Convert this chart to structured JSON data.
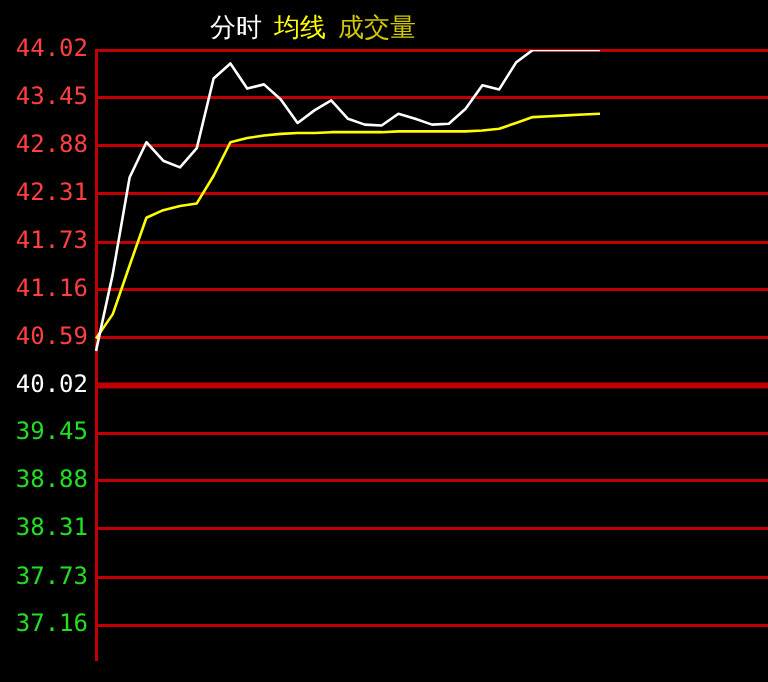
{
  "chart_data": {
    "type": "line",
    "categories": [
      null,
      null,
      null,
      null,
      null,
      null,
      null,
      null,
      null,
      null,
      null,
      null,
      null,
      null,
      null,
      null,
      null,
      null,
      null,
      null,
      null,
      null,
      null,
      null,
      null,
      null,
      null,
      null,
      null,
      null,
      null,
      null,
      null,
      null,
      null,
      null,
      null,
      null,
      null,
      null,
      null
    ],
    "series": [
      {
        "name": "分时",
        "color": "#ffffff",
        "values": [
          40.43,
          41.35,
          42.5,
          42.92,
          42.7,
          42.62,
          42.85,
          43.68,
          43.86,
          43.56,
          43.61,
          43.43,
          43.15,
          43.3,
          43.42,
          43.2,
          43.13,
          43.12,
          43.26,
          43.2,
          43.13,
          43.14,
          43.32,
          43.6,
          43.55,
          43.87,
          44.02,
          44.02,
          44.02,
          44.02,
          44.02,
          null,
          null,
          null,
          null,
          null,
          null,
          null,
          null,
          null,
          null
        ]
      },
      {
        "name": "均线",
        "color": "#ffff00",
        "values": [
          40.58,
          40.87,
          41.45,
          42.02,
          42.11,
          42.16,
          42.19,
          42.52,
          42.92,
          42.97,
          43.0,
          43.02,
          43.03,
          43.03,
          43.04,
          43.04,
          43.04,
          43.04,
          43.05,
          43.05,
          43.05,
          43.05,
          43.05,
          43.06,
          43.08,
          43.15,
          43.22,
          43.23,
          43.24,
          43.25,
          43.26,
          null,
          null,
          null,
          null,
          null,
          null,
          null,
          null,
          null,
          null
        ]
      }
    ],
    "annotations": [
      "成交量"
    ],
    "ylim": [
      36.75,
      44.02
    ],
    "yticks": [
      37.16,
      37.73,
      38.31,
      38.88,
      39.45,
      40.02,
      40.59,
      41.16,
      41.73,
      42.31,
      42.88,
      43.45,
      44.02
    ],
    "ref_lines": [
      {
        "axis": "y",
        "value": 40.02,
        "color": "#c00000"
      }
    ],
    "tick_labels": "y",
    "grid": "y",
    "marker": "none",
    "line_style": "solid"
  }
}
